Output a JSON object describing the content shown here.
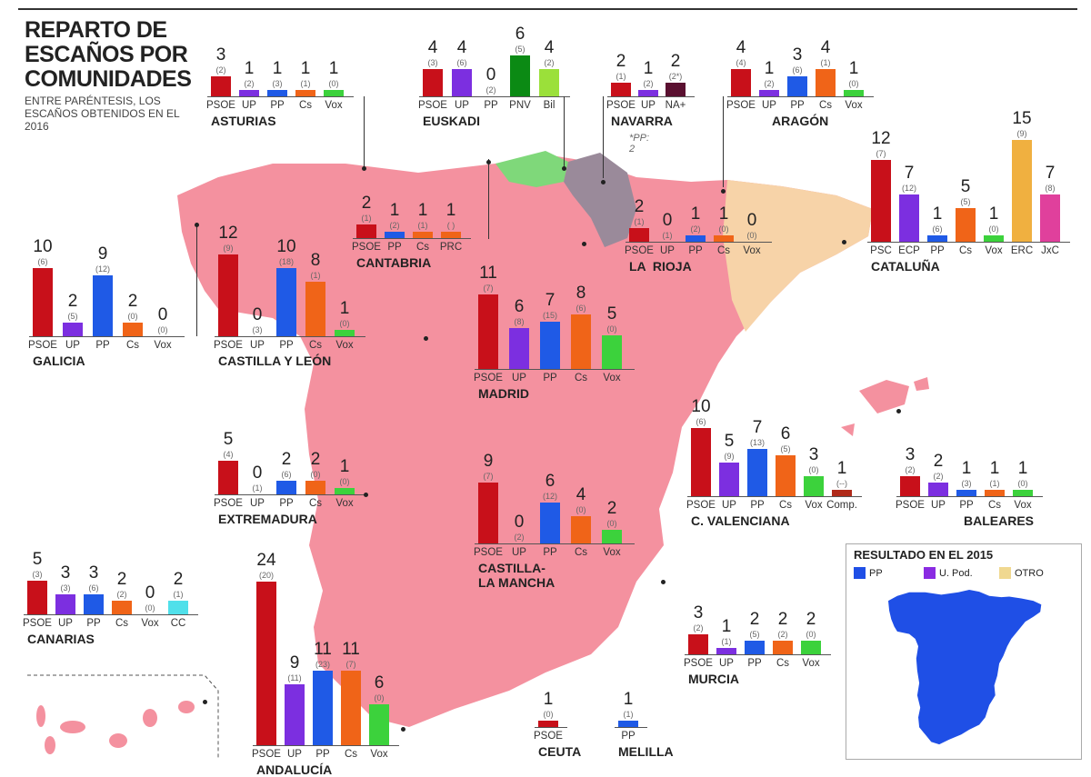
{
  "title": "REPARTO DE ESCAÑOS POR COMUNIDADES",
  "subtitle": "ENTRE PARÉNTESIS, LOS ESCAÑOS OBTENIDOS EN EL 2016",
  "colors": {
    "PSOE": "#c8101a",
    "UP": "#7c2fe0",
    "PP": "#1f5ae6",
    "Cs": "#f06418",
    "Vox": "#3cd23c",
    "PNV": "#0b8a14",
    "Bil": "#9be03a",
    "NA+": "#5a1030",
    "PRC": "#f06418",
    "CC": "#50e0ea",
    "Comp.": "#b02a1a",
    "PSC": "#c8101a",
    "ECP": "#7c2fe0",
    "ERC": "#f0b040",
    "JxC": "#e0409c",
    "map_main": "#f4919f",
    "map_euskadi": "#7fd87a",
    "map_navarra": "#9a8a9a",
    "map_cataluna": "#f7d3a8"
  },
  "chart_data": {
    "type": "bar",
    "description_units": "seats",
    "regions": [
      {
        "name": "ASTURIAS",
        "parties": [
          "PSOE",
          "UP",
          "PP",
          "Cs",
          "Vox"
        ],
        "values": [
          3,
          1,
          1,
          1,
          1
        ],
        "prev": [
          "(2)",
          "(2)",
          "(3)",
          "(1)",
          "(0)"
        ]
      },
      {
        "name": "EUSKADI",
        "parties": [
          "PSOE",
          "UP",
          "PP",
          "PNV",
          "Bil"
        ],
        "values": [
          4,
          4,
          0,
          6,
          4
        ],
        "prev": [
          "(3)",
          "(6)",
          "(2)",
          "(5)",
          "(2)"
        ]
      },
      {
        "name": "NAVARRA",
        "parties": [
          "PSOE",
          "UP",
          "NA+"
        ],
        "values": [
          2,
          1,
          2
        ],
        "prev": [
          "(1)",
          "(2)",
          "(2*)"
        ],
        "note": "*PP: 2"
      },
      {
        "name": "ARAGÓN",
        "parties": [
          "PSOE",
          "UP",
          "PP",
          "Cs",
          "Vox"
        ],
        "values": [
          4,
          1,
          3,
          4,
          1
        ],
        "prev": [
          "(4)",
          "(2)",
          "(6)",
          "(1)",
          "(0)"
        ]
      },
      {
        "name": "CATALUÑA",
        "parties": [
          "PSC",
          "ECP",
          "PP",
          "Cs",
          "Vox",
          "ERC",
          "JxC"
        ],
        "values": [
          12,
          7,
          1,
          5,
          1,
          15,
          7
        ],
        "prev": [
          "(7)",
          "(12)",
          "(6)",
          "(5)",
          "(0)",
          "(9)",
          "(8)"
        ]
      },
      {
        "name": "CANTABRIA",
        "parties": [
          "PSOE",
          "PP",
          "Cs",
          "PRC"
        ],
        "values": [
          2,
          1,
          1,
          1
        ],
        "prev": [
          "(1)",
          "(2)",
          "(1)",
          "( )"
        ]
      },
      {
        "name": "LA  RIOJA",
        "parties": [
          "PSOE",
          "UP",
          "PP",
          "Cs",
          "Vox"
        ],
        "values": [
          2,
          0,
          1,
          1,
          0
        ],
        "prev": [
          "(1)",
          "(1)",
          "(2)",
          "(0)",
          "(0)"
        ]
      },
      {
        "name": "GALICIA",
        "parties": [
          "PSOE",
          "UP",
          "PP",
          "Cs",
          "Vox"
        ],
        "values": [
          10,
          2,
          9,
          2,
          0
        ],
        "prev": [
          "(6)",
          "(5)",
          "(12)",
          "(0)",
          "(0)"
        ]
      },
      {
        "name": "CASTILLA Y LEÓN",
        "parties": [
          "PSOE",
          "UP",
          "PP",
          "Cs",
          "Vox"
        ],
        "values": [
          12,
          0,
          10,
          8,
          1
        ],
        "prev": [
          "(9)",
          "(3)",
          "(18)",
          "(1)",
          "(0)"
        ]
      },
      {
        "name": "MADRID",
        "parties": [
          "PSOE",
          "UP",
          "PP",
          "Cs",
          "Vox"
        ],
        "values": [
          11,
          6,
          7,
          8,
          5
        ],
        "prev": [
          "(7)",
          "(8)",
          "(15)",
          "(6)",
          "(0)"
        ]
      },
      {
        "name": "EXTREMADURA",
        "parties": [
          "PSOE",
          "UP",
          "PP",
          "Cs",
          "Vox"
        ],
        "values": [
          5,
          0,
          2,
          2,
          1
        ],
        "prev": [
          "(4)",
          "(1)",
          "(6)",
          "(0)",
          "(0)"
        ]
      },
      {
        "name": "CASTILLA-\nLA MANCHA",
        "parties": [
          "PSOE",
          "UP",
          "PP",
          "Cs",
          "Vox"
        ],
        "values": [
          9,
          0,
          6,
          4,
          2
        ],
        "prev": [
          "(7)",
          "(2)",
          "(12)",
          "(0)",
          "(0)"
        ]
      },
      {
        "name": "C. VALENCIANA",
        "parties": [
          "PSOE",
          "UP",
          "PP",
          "Cs",
          "Vox",
          "Comp."
        ],
        "values": [
          10,
          5,
          7,
          6,
          3,
          1
        ],
        "prev": [
          "(6)",
          "(9)",
          "(13)",
          "(5)",
          "(0)",
          "(--)"
        ]
      },
      {
        "name": "BALEARES",
        "parties": [
          "PSOE",
          "UP",
          "PP",
          "Cs",
          "Vox"
        ],
        "values": [
          3,
          2,
          1,
          1,
          1
        ],
        "prev": [
          "(2)",
          "(2)",
          "(3)",
          "(1)",
          "(0)"
        ]
      },
      {
        "name": "CANARIAS",
        "parties": [
          "PSOE",
          "UP",
          "PP",
          "Cs",
          "Vox",
          "CC"
        ],
        "values": [
          5,
          3,
          3,
          2,
          0,
          2
        ],
        "prev": [
          "(3)",
          "(3)",
          "(6)",
          "(2)",
          "(0)",
          "(1)"
        ]
      },
      {
        "name": "ANDALUCÍA",
        "parties": [
          "PSOE",
          "UP",
          "PP",
          "Cs",
          "Vox"
        ],
        "values": [
          24,
          9,
          11,
          11,
          6
        ],
        "prev": [
          "(20)",
          "(11)",
          "(23)",
          "(7)",
          "(0)"
        ]
      },
      {
        "name": "MURCIA",
        "parties": [
          "PSOE",
          "UP",
          "PP",
          "Cs",
          "Vox"
        ],
        "values": [
          3,
          1,
          2,
          2,
          2
        ],
        "prev": [
          "(2)",
          "(1)",
          "(5)",
          "(2)",
          "(0)"
        ]
      },
      {
        "name": "CEUTA",
        "parties": [
          "PSOE"
        ],
        "values": [
          1
        ],
        "prev": [
          "(0)"
        ]
      },
      {
        "name": "MELILLA",
        "parties": [
          "PP"
        ],
        "values": [
          1
        ],
        "prev": [
          "(1)"
        ]
      }
    ]
  },
  "inset": {
    "title": "RESULTADO EN EL 2015",
    "legend": [
      {
        "label": "PP",
        "color": "#1f4fe6"
      },
      {
        "label": "U. Pod.",
        "color": "#8a2be2"
      },
      {
        "label": "OTRO",
        "color": "#f0d890"
      }
    ]
  }
}
